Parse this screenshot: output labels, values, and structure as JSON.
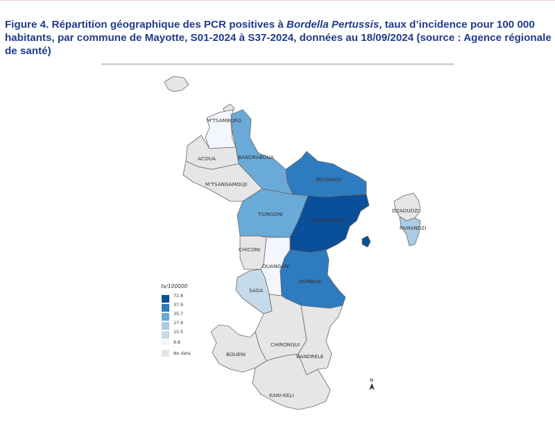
{
  "caption": {
    "part1": "Figure 4. Répartition géographique des PCR positives à ",
    "italic": "Bordella Pertussis",
    "part2": ", taux d’incidence pour 100 000 habitants, par commune de Mayotte, S01-2024 à S37-2024, données au 18/09/2024 (source : Agence régionale de santé)"
  },
  "colors": {
    "no_data": "#e6e6e6",
    "c9_8": "#f3f6fd",
    "c15_5": "#c5dbea",
    "c17_9": "#a9cce4",
    "c35_7": "#6aaad8",
    "c37_9": "#2e7cbf",
    "c72_8": "#0a4f99"
  },
  "map": {
    "communes": [
      {
        "name": "MTSAMBORO",
        "label": "M'TSAMBORO",
        "rate_class": "9.8"
      },
      {
        "name": "ACOUA",
        "label": "ACOUA",
        "rate_class": "no data"
      },
      {
        "name": "BANDRABOUA",
        "label": "BANDRABOUA",
        "rate_class": "35.7"
      },
      {
        "name": "MTSANGAMOUJI",
        "label": "M'TSANGAMOUJI",
        "rate_class": "no data"
      },
      {
        "name": "KOUNGOU",
        "label": "KOUNGOU",
        "rate_class": "37.9"
      },
      {
        "name": "TSINGONI",
        "label": "TSINGONI",
        "rate_class": "35.7"
      },
      {
        "name": "MAMOUDZOU",
        "label": "MAMOUDZOU",
        "rate_class": "72.8"
      },
      {
        "name": "DZAOUDZI",
        "label": "DZAOUDZI",
        "rate_class": "no data"
      },
      {
        "name": "PAMANDZI",
        "label": "PAMANDZI",
        "rate_class": "17.9"
      },
      {
        "name": "CHICONI",
        "label": "CHICONI",
        "rate_class": "no data"
      },
      {
        "name": "OUANGANI",
        "label": "OUANGANI",
        "rate_class": "9.8"
      },
      {
        "name": "SADA",
        "label": "SADA",
        "rate_class": "15.5"
      },
      {
        "name": "DEMBENI",
        "label": "DEMBENI",
        "rate_class": "37.9"
      },
      {
        "name": "CHIRONGUI",
        "label": "CHIRONGUI",
        "rate_class": "no data"
      },
      {
        "name": "BOUENI",
        "label": "BOUENI",
        "rate_class": "no data"
      },
      {
        "name": "BANDRELE",
        "label": "BANDRELE",
        "rate_class": "no data"
      },
      {
        "name": "KANI-KELI",
        "label": "KANI-KELI",
        "rate_class": "no data"
      }
    ]
  },
  "legend": {
    "title": "tx/100000",
    "breaks": [
      "72.8",
      "37.9",
      "35.7",
      "17.9",
      "15.5",
      "9.8"
    ],
    "no_data_label": "No data"
  },
  "north_arrow": {
    "letter": "N"
  }
}
